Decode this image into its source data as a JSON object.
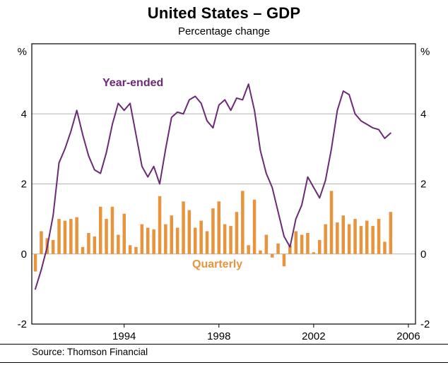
{
  "chart_data": {
    "type": "combo",
    "title": "United States – GDP",
    "subtitle": "Percentage change",
    "y_unit": "%",
    "x_start": 1990.25,
    "x_step": 0.25,
    "xlim": [
      1990.1,
      2006.3
    ],
    "ylim": [
      -2,
      6
    ],
    "gridlines": [
      0,
      2,
      4
    ],
    "xticks": [
      1994,
      1998,
      2002,
      2006
    ],
    "yticks": [
      -2,
      0,
      2,
      4
    ],
    "grid_on": true,
    "legend_position": "inline-annotations",
    "series": [
      {
        "name": "Year-ended",
        "type": "line",
        "color": "#6B2A75",
        "values": [
          -1.0,
          -0.45,
          0.2,
          1.1,
          2.6,
          3.0,
          3.5,
          4.1,
          3.4,
          2.8,
          2.4,
          2.3,
          2.9,
          3.7,
          4.3,
          4.1,
          4.3,
          3.4,
          2.5,
          2.2,
          2.5,
          2.0,
          3.0,
          3.9,
          4.05,
          4.0,
          4.4,
          4.5,
          4.3,
          3.8,
          3.6,
          4.25,
          4.4,
          4.1,
          4.45,
          4.4,
          4.85,
          4.1,
          2.95,
          2.3,
          1.9,
          1.2,
          0.5,
          0.2,
          1.0,
          1.4,
          2.2,
          1.9,
          1.6,
          2.1,
          3.0,
          4.1,
          4.65,
          4.55,
          4.0,
          3.8,
          3.7,
          3.6,
          3.55,
          3.3,
          3.45
        ]
      },
      {
        "name": "Quarterly",
        "type": "bar",
        "color": "#E8943D",
        "values": [
          -0.5,
          0.65,
          0.45,
          0.4,
          1.0,
          0.95,
          1.0,
          1.05,
          0.2,
          0.6,
          0.5,
          1.35,
          1.0,
          1.35,
          0.55,
          1.15,
          0.25,
          0.2,
          0.85,
          0.75,
          0.7,
          1.65,
          0.85,
          1.1,
          0.75,
          1.5,
          1.25,
          0.75,
          0.95,
          0.65,
          1.3,
          1.5,
          0.85,
          0.8,
          1.2,
          1.8,
          0.25,
          1.55,
          0.1,
          0.55,
          -0.1,
          0.3,
          -0.35,
          0.25,
          0.65,
          0.55,
          0.6,
          0.05,
          0.4,
          0.85,
          1.8,
          0.9,
          1.1,
          0.85,
          1.0,
          0.8,
          0.95,
          0.8,
          1.0,
          0.35,
          1.2
        ]
      }
    ]
  },
  "footer": {
    "source": "Source: Thomson Financial"
  }
}
